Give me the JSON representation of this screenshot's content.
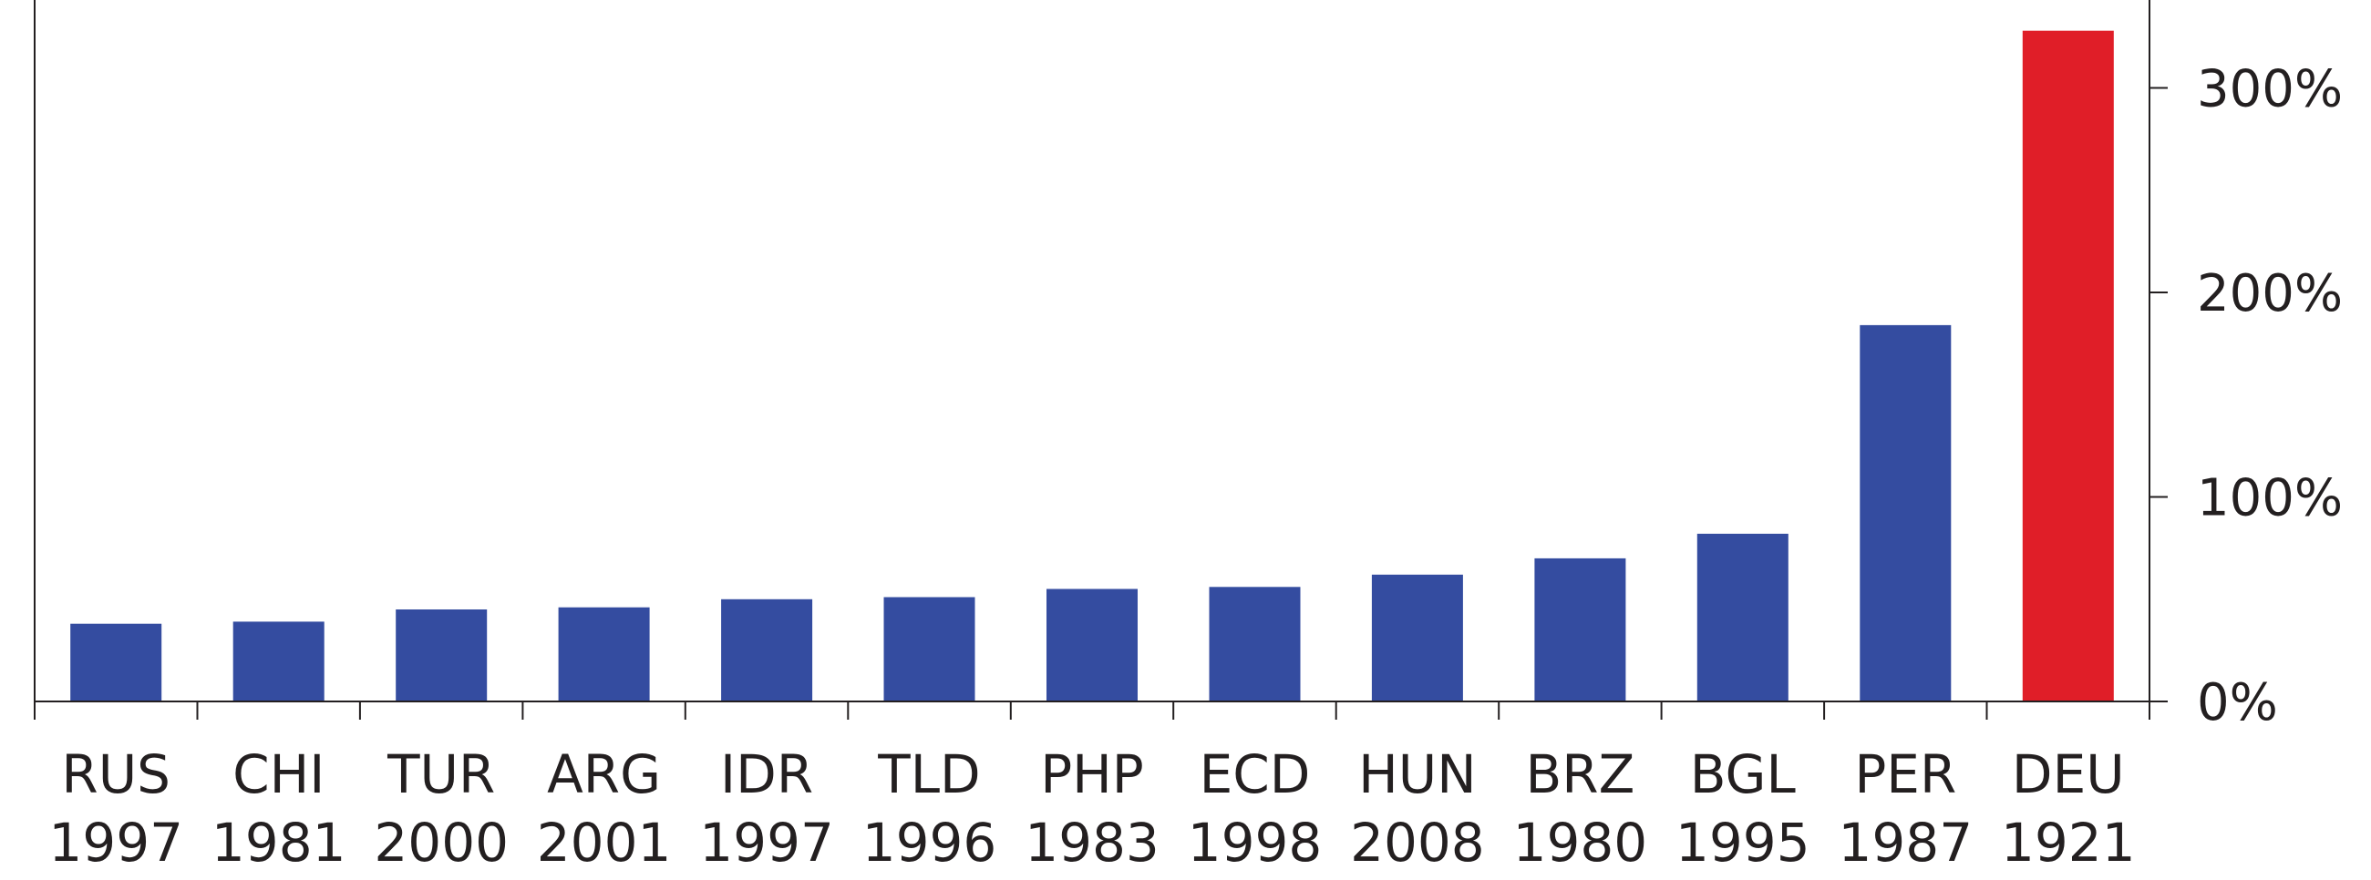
{
  "chart_data": {
    "type": "bar",
    "title": "",
    "xlabel": "",
    "ylabel": "",
    "categories": [
      [
        "RUS",
        "1997"
      ],
      [
        "CHI",
        "1981"
      ],
      [
        "TUR",
        "2000"
      ],
      [
        "ARG",
        "2001"
      ],
      [
        "IDR",
        "1997"
      ],
      [
        "TLD",
        "1996"
      ],
      [
        "PHP",
        "1983"
      ],
      [
        "ECD",
        "1998"
      ],
      [
        "HUN",
        "2008"
      ],
      [
        "BRZ",
        "1980"
      ],
      [
        "BGL",
        "1995"
      ],
      [
        "PER",
        "1987"
      ],
      [
        "DEU",
        "1921"
      ]
    ],
    "values": [
      38,
      39,
      45,
      46,
      50,
      51,
      55,
      56,
      62,
      70,
      82,
      184,
      328
    ],
    "ylim": [
      0,
      343
    ],
    "yticks": [
      0,
      100,
      200,
      300
    ],
    "ytick_labels": [
      "0%",
      "100%",
      "200%",
      "300%"
    ],
    "y_axis_side": "right",
    "grid": false,
    "legend": "none",
    "colors": {
      "default_bar": "#344ca0",
      "highlight_bar": "#e01e28",
      "highlight_index": 12,
      "axis": "#231f20"
    }
  }
}
